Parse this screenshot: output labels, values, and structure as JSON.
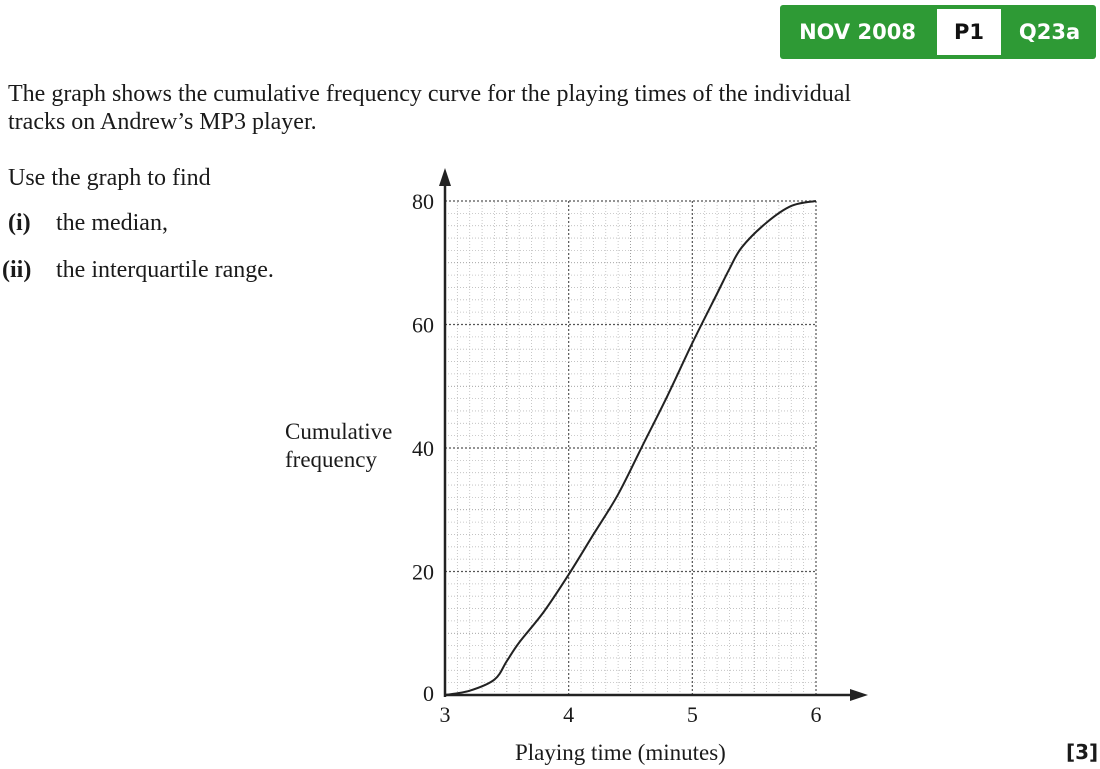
{
  "badge": {
    "date": "NOV 2008",
    "paper": "P1",
    "question": "Q23a",
    "color": "#2e9a35"
  },
  "question": {
    "intro": "The graph shows the cumulative frequency curve for the playing times of the individual tracks on Andrew’s MP3 player.",
    "instruction": "Use the graph to find",
    "parts": [
      {
        "label": "(i)",
        "text": "the median,"
      },
      {
        "label": "(ii)",
        "text": "the interquartile range."
      }
    ],
    "marks": "[3]"
  },
  "chart_data": {
    "type": "line",
    "xlabel": "Playing time (minutes)",
    "ylabel": [
      "Cumulative",
      "frequency"
    ],
    "xlim": [
      3,
      6
    ],
    "ylim": [
      0,
      80
    ],
    "xticks": [
      "3",
      "4",
      "5",
      "6"
    ],
    "yticks": [
      "0",
      "20",
      "40",
      "60",
      "80"
    ],
    "grid": true,
    "series": [
      {
        "points": [
          [
            3.0,
            0
          ],
          [
            3.2,
            0.7
          ],
          [
            3.4,
            2.5
          ],
          [
            3.5,
            5.5
          ],
          [
            3.6,
            8.5
          ],
          [
            3.8,
            13.5
          ],
          [
            4.0,
            19.5
          ],
          [
            4.2,
            26
          ],
          [
            4.4,
            32.5
          ],
          [
            4.6,
            40.5
          ],
          [
            4.8,
            48.5
          ],
          [
            5.0,
            57
          ],
          [
            5.2,
            65
          ],
          [
            5.3,
            69
          ],
          [
            5.4,
            72.5
          ],
          [
            5.6,
            76.5
          ],
          [
            5.8,
            79.2
          ],
          [
            6.0,
            80
          ]
        ]
      }
    ]
  }
}
